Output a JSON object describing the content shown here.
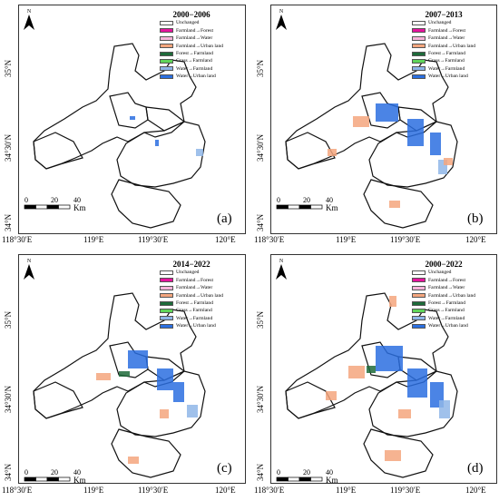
{
  "legend_items": [
    {
      "label": "Unchanged",
      "color": "#ffffff"
    },
    {
      "label": "Farmland→Forest",
      "color": "#e6139e"
    },
    {
      "label": "Farmland→Water",
      "color": "#f7b4da"
    },
    {
      "label": "Farmland→Urban land",
      "color": "#f4a67e"
    },
    {
      "label": "Forest→Farmland",
      "color": "#1e6b3a"
    },
    {
      "label": "Grass→Farmland",
      "color": "#5fd45a"
    },
    {
      "label": "Water→Farmland",
      "color": "#8fb6e8"
    },
    {
      "label": "Water→Urban land",
      "color": "#2b6fe0"
    }
  ],
  "panels": [
    {
      "title": "2000−2006",
      "label": "(a)"
    },
    {
      "title": "2007−2013",
      "label": "(b)"
    },
    {
      "title": "2014−2022",
      "label": "(c)"
    },
    {
      "title": "2000−2022",
      "label": "(d)"
    }
  ],
  "scale": {
    "ticks": [
      "0",
      "20",
      "40"
    ],
    "unit": "Km"
  },
  "north": "N",
  "lon_labels": [
    "118°30′E",
    "119°E",
    "119°30′E",
    "120°E"
  ],
  "lat_labels": [
    "35°N",
    "34°30′N",
    "34°N"
  ]
}
